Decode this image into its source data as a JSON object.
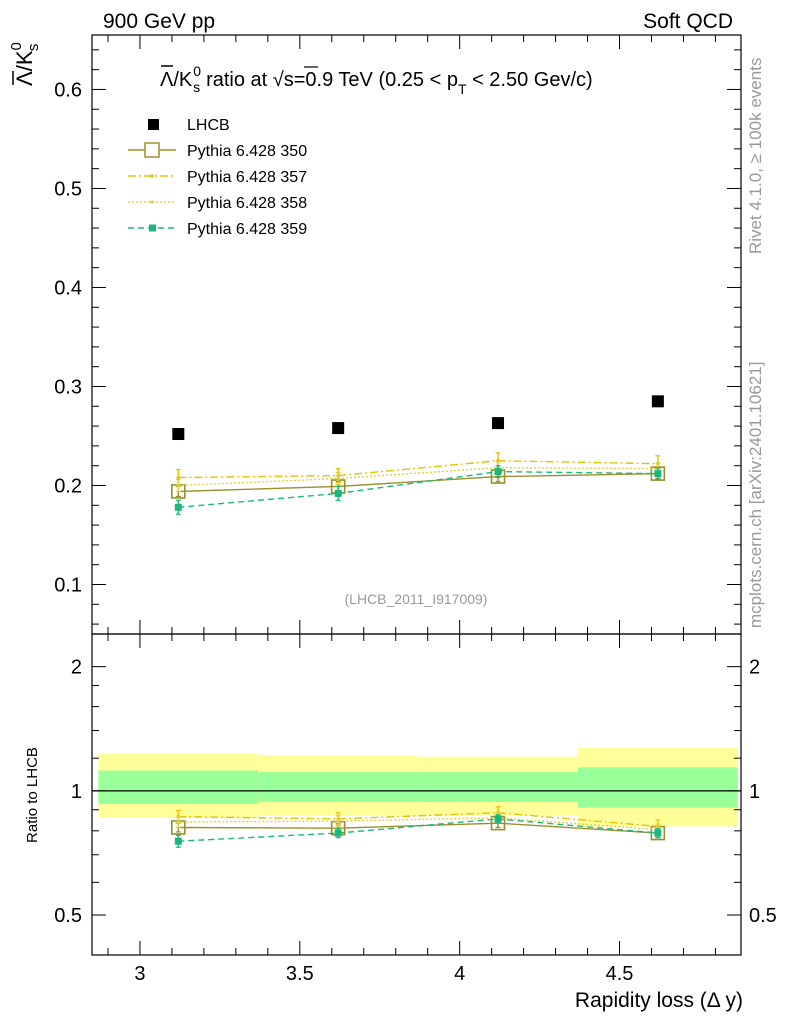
{
  "header": {
    "left": "900 GeV pp",
    "right": "Soft QCD"
  },
  "side_labels": {
    "rivet": "Rivet 4.1.0, ≥ 100k events",
    "mcplots": "mcplots.cern.ch [arXiv:2401.10621]"
  },
  "watermark": "(LHCB_2011_I917009)",
  "chart_data": [
    {
      "type": "scatter",
      "panel": "main",
      "title": "Λ̅/K⁰s ratio at √s=0.9 TeV (0.25 < pT < 2.50 Gev/c)",
      "title_parts": {
        "pre": "ratio at ",
        "sqrt_s": "s=0.9 TeV (0.25 < p",
        "sub_t": "T",
        "post": " < 2.50 Gev/c)"
      },
      "ylabel": "Λ̅/K⁰s",
      "ylabel_parts": {
        "lambda": "Λ",
        "k": "K",
        "sup": "0",
        "sub": "s"
      },
      "xlim": [
        2.85,
        4.88
      ],
      "ylim": [
        0.05,
        0.655
      ],
      "yticks": [
        0.1,
        0.2,
        0.3,
        0.4,
        0.5,
        0.6
      ],
      "ytick_labels": [
        "0.1",
        "0.2",
        "0.3",
        "0.4",
        "0.5",
        "0.6"
      ],
      "legend_position": "top-left",
      "x": [
        3.12,
        3.62,
        4.12,
        4.62
      ],
      "series": [
        {
          "name": "LHCB",
          "style": "data",
          "color": "#000000",
          "values": [
            0.252,
            0.258,
            0.263,
            0.285
          ],
          "errors": [
            0,
            0,
            0,
            0
          ]
        },
        {
          "name": "Pythia 6.428 350",
          "style": "solid-open-square",
          "color": "#9a8f2a",
          "values": [
            0.194,
            0.199,
            0.209,
            0.212
          ],
          "errors": [
            0.005,
            0.005,
            0.005,
            0.005
          ]
        },
        {
          "name": "Pythia 6.428 357",
          "style": "dashdot",
          "color": "#e6c200",
          "values": [
            0.208,
            0.21,
            0.225,
            0.222
          ],
          "errors": [
            0.008,
            0.007,
            0.008,
            0.008
          ]
        },
        {
          "name": "Pythia 6.428 358",
          "style": "dotted",
          "color": "#e0d040",
          "values": [
            0.2,
            0.207,
            0.218,
            0.217
          ],
          "errors": [
            0.006,
            0.006,
            0.006,
            0.006
          ]
        },
        {
          "name": "Pythia 6.428 359",
          "style": "dashed-filled-square",
          "color": "#19b87a",
          "values": [
            0.178,
            0.192,
            0.214,
            0.212
          ],
          "errors": [
            0.007,
            0.007,
            0.006,
            0.006
          ]
        }
      ]
    },
    {
      "type": "scatter",
      "panel": "ratio",
      "ylabel": "Ratio to LHCB",
      "xlabel": "Rapidity loss (Δ y)",
      "xlim": [
        2.85,
        4.88
      ],
      "ylim": [
        0.4,
        2.4
      ],
      "log_y": true,
      "yticks": [
        0.5,
        1,
        2
      ],
      "ytick_labels": [
        "0.5",
        "1",
        "2"
      ],
      "xticks": [
        3,
        3.5,
        4,
        4.5
      ],
      "xtick_labels": [
        "3",
        "3.5",
        "4",
        "4.5"
      ],
      "x": [
        3.12,
        3.62,
        4.12,
        4.62
      ],
      "bins": [
        [
          2.87,
          3.37
        ],
        [
          3.37,
          3.87
        ],
        [
          3.87,
          4.37
        ],
        [
          4.37,
          4.87
        ]
      ],
      "band_outer": [
        [
          0.86,
          1.23
        ],
        [
          0.87,
          1.22
        ],
        [
          0.87,
          1.21
        ],
        [
          0.82,
          1.27
        ]
      ],
      "band_inner": [
        [
          0.93,
          1.12
        ],
        [
          0.94,
          1.11
        ],
        [
          0.94,
          1.11
        ],
        [
          0.91,
          1.14
        ]
      ],
      "band_colors": {
        "outer": "#ffff99",
        "inner": "#99ff99"
      },
      "series": [
        {
          "name": "Pythia 6.428 350",
          "style": "solid-open-square",
          "color": "#9a8f2a",
          "values": [
            0.815,
            0.812,
            0.835,
            0.79
          ],
          "errors": [
            0.02,
            0.02,
            0.02,
            0.02
          ]
        },
        {
          "name": "Pythia 6.428 357",
          "style": "dashdot",
          "color": "#e6c200",
          "values": [
            0.866,
            0.855,
            0.885,
            0.82
          ],
          "errors": [
            0.03,
            0.03,
            0.03,
            0.03
          ]
        },
        {
          "name": "Pythia 6.428 358",
          "style": "dotted",
          "color": "#e0d040",
          "values": [
            0.84,
            0.845,
            0.86,
            0.805
          ],
          "errors": [
            0.025,
            0.025,
            0.025,
            0.025
          ]
        },
        {
          "name": "Pythia 6.428 359",
          "style": "dashed-filled-square",
          "color": "#19b87a",
          "values": [
            0.755,
            0.79,
            0.855,
            0.79
          ],
          "errors": [
            0.025,
            0.02,
            0.02,
            0.02
          ]
        }
      ]
    }
  ]
}
